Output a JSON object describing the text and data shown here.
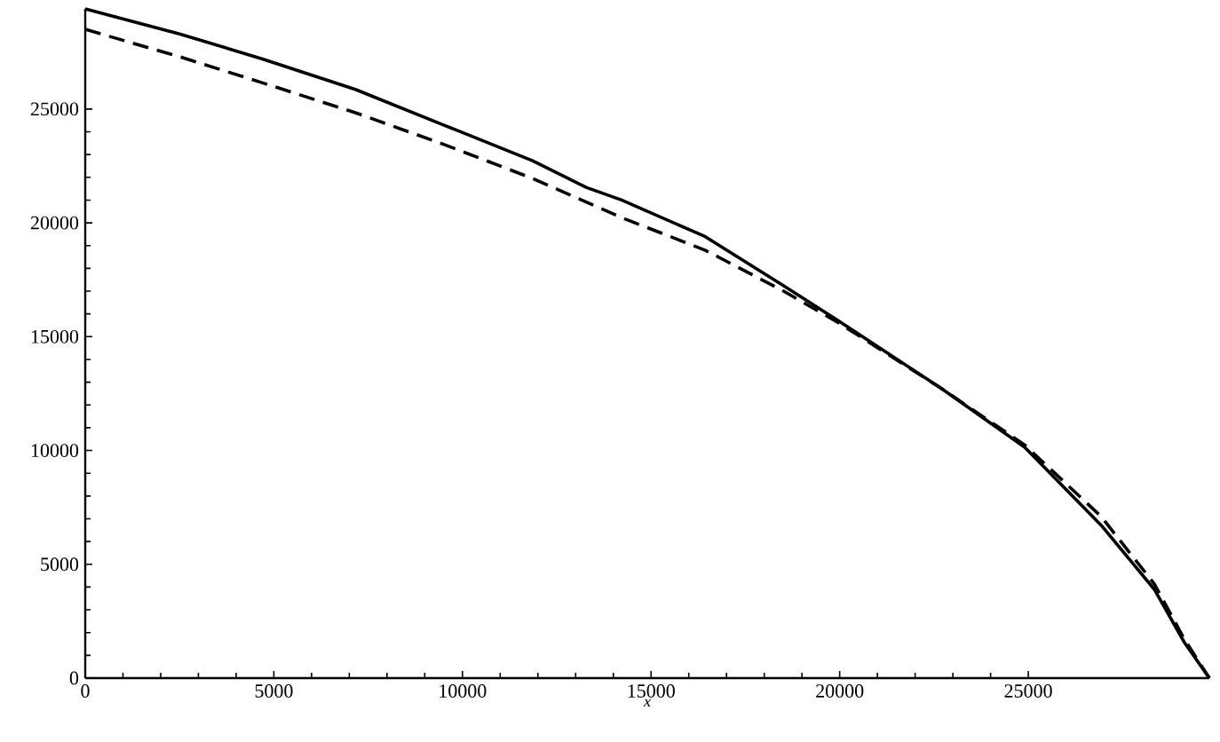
{
  "chart_data": {
    "type": "line",
    "xlabel": "*x*",
    "xlim": [
      0,
      29800
    ],
    "ylim": [
      0,
      29400
    ],
    "xticks": [
      0,
      5000,
      10000,
      15000,
      20000,
      25000
    ],
    "yticks": [
      0,
      5000,
      10000,
      15000,
      20000,
      25000
    ],
    "marker": "none",
    "series": [
      {
        "color": "#000000",
        "line_style": "solid",
        "x": [
          0,
          2500,
          4700,
          7160,
          9500,
          11860,
          13280,
          14220,
          16430,
          18460,
          19960,
          22690,
          24900,
          26930,
          28340,
          29140,
          29800
        ],
        "values": [
          29400,
          28300,
          27200,
          25860,
          24300,
          22730,
          21560,
          21000,
          19400,
          17290,
          15700,
          12730,
          10150,
          6720,
          3900,
          1560,
          0
        ]
      },
      {
        "color": "#000000",
        "line_style": "dashed",
        "x": [
          0,
          2500,
          4700,
          7160,
          9500,
          11860,
          14220,
          16430,
          18460,
          19960,
          22690,
          24900,
          26930,
          28340,
          29140,
          29800
        ],
        "values": [
          28500,
          27300,
          26150,
          24840,
          23450,
          21950,
          20230,
          18800,
          17050,
          15620,
          12730,
          10250,
          7100,
          4140,
          1700,
          0
        ]
      }
    ]
  }
}
